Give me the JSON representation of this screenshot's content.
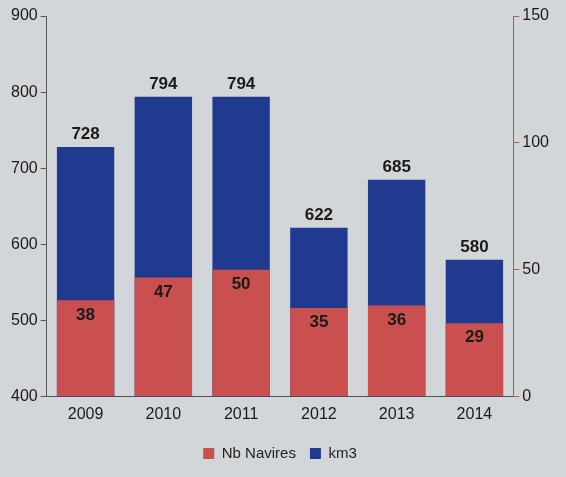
{
  "chart_data": {
    "type": "bar",
    "categories": [
      "2009",
      "2010",
      "2011",
      "2012",
      "2013",
      "2014"
    ],
    "series": [
      {
        "name": "km3",
        "color": "#1f3a8f",
        "values": [
          728,
          794,
          794,
          622,
          685,
          580
        ]
      },
      {
        "name": "Nb Navires",
        "color": "#c9504f",
        "values": [
          38,
          47,
          50,
          35,
          36,
          29
        ],
        "axis": "y2"
      }
    ],
    "ylim": [
      400,
      900
    ],
    "yticks": [
      400,
      500,
      600,
      700,
      800,
      900
    ],
    "y2lim": [
      0,
      150
    ],
    "y2ticks": [
      0,
      50,
      100,
      150
    ],
    "grid": false,
    "legend": "bottom",
    "data_labels": true
  }
}
